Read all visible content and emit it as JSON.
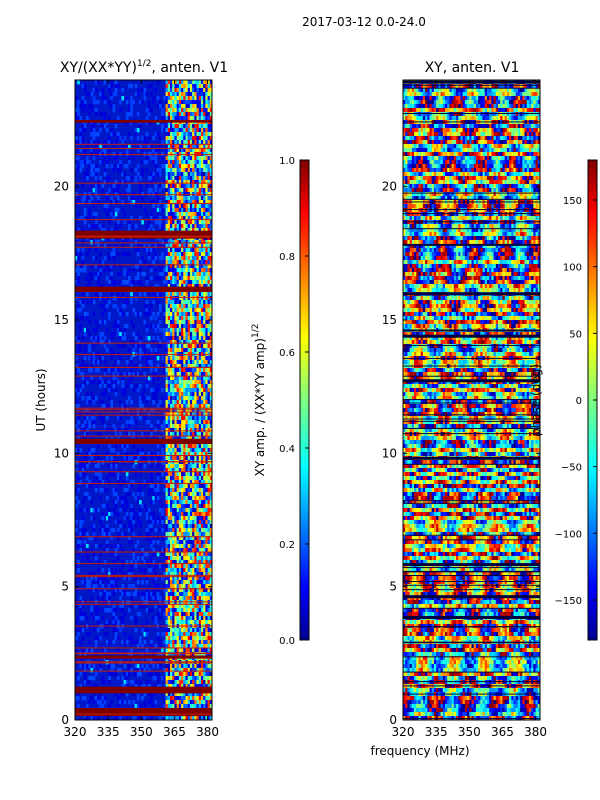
{
  "figure": {
    "suptitle": "2017-03-12 0.0-24.0",
    "shared_xlabel": "frequency (MHz)"
  },
  "chart_data": [
    {
      "type": "heatmap",
      "title_main": "XY/(XX*YY)",
      "title_sup": "1/2",
      "title_tail": ", anten. V1",
      "xlabel": "",
      "ylabel": "UT (hours)",
      "xlim": [
        320,
        382
      ],
      "ylim": [
        0,
        24
      ],
      "xticks": [
        320,
        335,
        350,
        365,
        380
      ],
      "yticks": [
        0,
        5,
        10,
        15,
        20
      ],
      "colormap": "jet",
      "colorbar": {
        "label_main": "XY amp. / (XX*YY amp)",
        "label_sup": "1/2",
        "range": [
          0.0,
          1.0
        ],
        "ticks": [
          "0.0",
          "0.2",
          "0.4",
          "0.6",
          "0.8",
          "1.0"
        ]
      },
      "flagged_bands_hours": [
        [
          0.15,
          0.45
        ],
        [
          1.0,
          1.25
        ],
        [
          2.3,
          2.42
        ],
        [
          10.35,
          10.55
        ],
        [
          16.05,
          16.25
        ],
        [
          18.05,
          18.35
        ],
        [
          22.4,
          22.5
        ]
      ],
      "bright_band_start_mhz": 361
    },
    {
      "type": "heatmap",
      "title": "XY, anten. V1",
      "xlabel": "",
      "ylabel": "",
      "xlim": [
        320,
        382
      ],
      "ylim": [
        0,
        24
      ],
      "xticks": [
        320,
        335,
        350,
        365,
        380
      ],
      "yticks": [
        0,
        5,
        10,
        15,
        20
      ],
      "colormap": "jet",
      "colorbar": {
        "label": "phase (deg)",
        "range": [
          -180,
          180
        ],
        "ticks": [
          "150",
          "100",
          "50",
          "0",
          "−50",
          "−100",
          "−150"
        ]
      }
    }
  ],
  "colors": {
    "jet_dark_blue": "#00008f",
    "jet_blue": "#0000ff",
    "jet_cyan": "#00ffff",
    "jet_yellow": "#ffff00",
    "jet_red": "#ff0000",
    "jet_dark_red": "#800000"
  }
}
